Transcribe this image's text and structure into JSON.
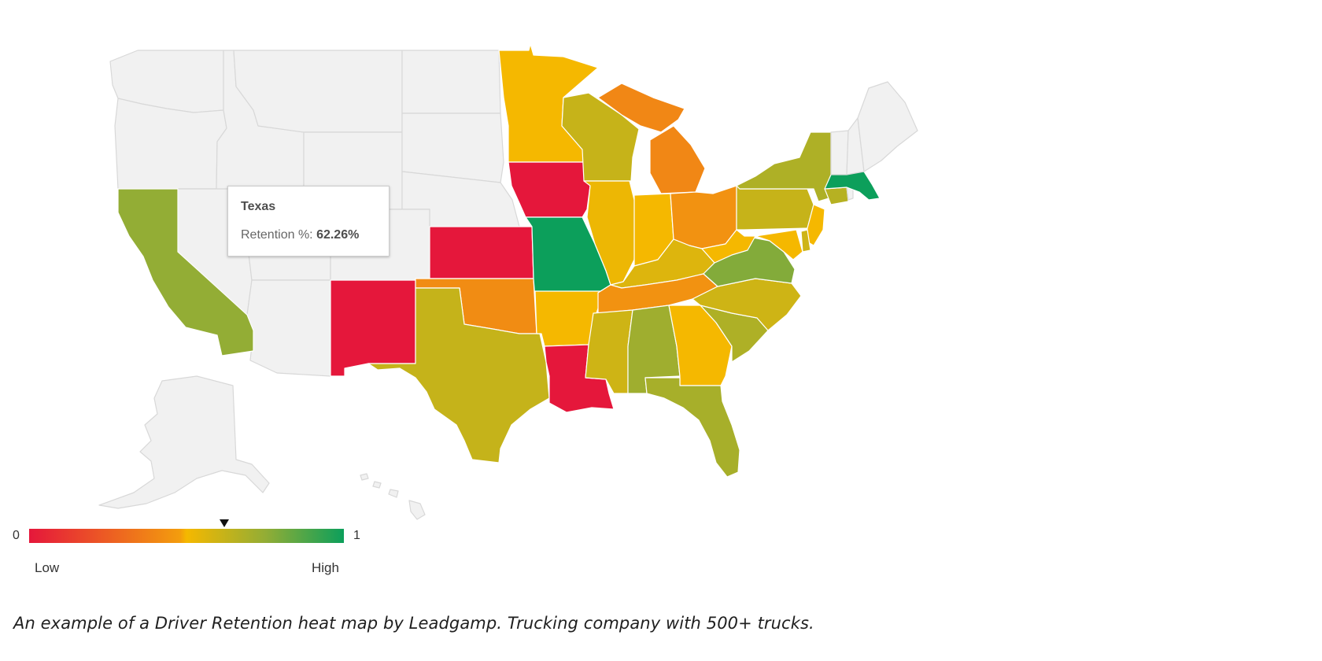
{
  "tooltip": {
    "state": "Texas",
    "label": "Retention %:",
    "value": "62.26%"
  },
  "legend": {
    "min": "0",
    "max": "1",
    "low_label": "Low",
    "high_label": "High",
    "marker_value": 0.62,
    "colors": [
      "#e5173b",
      "#f39d0d",
      "#f5b800",
      "#93ad35",
      "#0c9f5b"
    ]
  },
  "caption": "An example of a Driver Retention heat map by Leadgamp. Trucking company with 500+ trucks.",
  "map": {
    "no_data_color": "#f1f1f1",
    "states": [
      {
        "name": "Washington",
        "value": null
      },
      {
        "name": "Oregon",
        "value": null
      },
      {
        "name": "Idaho",
        "value": null
      },
      {
        "name": "Montana",
        "value": null
      },
      {
        "name": "Wyoming",
        "value": null
      },
      {
        "name": "North Dakota",
        "value": null
      },
      {
        "name": "South Dakota",
        "value": null
      },
      {
        "name": "Nebraska",
        "value": null
      },
      {
        "name": "Nevada",
        "value": null
      },
      {
        "name": "Utah",
        "value": null
      },
      {
        "name": "Colorado",
        "value": null
      },
      {
        "name": "Arizona",
        "value": null
      },
      {
        "name": "California",
        "value": 0.75
      },
      {
        "name": "New Mexico",
        "value": 0.0
      },
      {
        "name": "Kansas",
        "value": 0.0
      },
      {
        "name": "Oklahoma",
        "value": 0.42
      },
      {
        "name": "Texas",
        "value": 0.6226
      },
      {
        "name": "Minnesota",
        "value": 0.5
      },
      {
        "name": "Iowa",
        "value": 0.0
      },
      {
        "name": "Missouri",
        "value": 1.0
      },
      {
        "name": "Arkansas",
        "value": 0.5
      },
      {
        "name": "Louisiana",
        "value": 0.0
      },
      {
        "name": "Wisconsin",
        "value": 0.62
      },
      {
        "name": "Illinois",
        "value": 0.52
      },
      {
        "name": "Michigan",
        "value": 0.4
      },
      {
        "name": "Indiana",
        "value": 0.5
      },
      {
        "name": "Ohio",
        "value": 0.44
      },
      {
        "name": "Kentucky",
        "value": 0.56
      },
      {
        "name": "Tennessee",
        "value": 0.44
      },
      {
        "name": "Mississippi",
        "value": 0.6
      },
      {
        "name": "Alabama",
        "value": 0.72
      },
      {
        "name": "Georgia",
        "value": 0.5
      },
      {
        "name": "Florida",
        "value": 0.7
      },
      {
        "name": "South Carolina",
        "value": 0.68
      },
      {
        "name": "North Carolina",
        "value": 0.6
      },
      {
        "name": "Virginia",
        "value": 0.78
      },
      {
        "name": "West Virginia",
        "value": 0.5
      },
      {
        "name": "Pennsylvania",
        "value": 0.62
      },
      {
        "name": "New York",
        "value": 0.68
      },
      {
        "name": "New Jersey",
        "value": 0.5
      },
      {
        "name": "Maryland",
        "value": 0.5
      },
      {
        "name": "Delaware",
        "value": 0.6
      },
      {
        "name": "Connecticut",
        "value": 0.66
      },
      {
        "name": "Rhode Island",
        "value": null
      },
      {
        "name": "Massachusetts",
        "value": 1.0
      },
      {
        "name": "Vermont",
        "value": null
      },
      {
        "name": "New Hampshire",
        "value": null
      },
      {
        "name": "Maine",
        "value": null
      },
      {
        "name": "Alaska",
        "value": null
      },
      {
        "name": "Hawaii",
        "value": null
      }
    ]
  }
}
